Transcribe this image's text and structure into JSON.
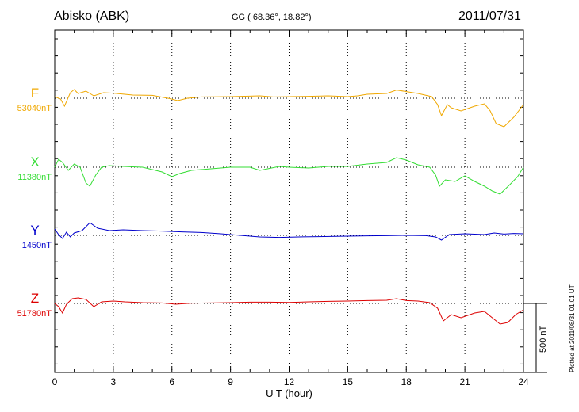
{
  "header": {
    "station": "Abisko (ABK)",
    "coords": "GG ( 68.36°,  18.82°)",
    "date": "2011/07/31"
  },
  "side_note": "Plotted at 2011/08/31 01:01  UT",
  "scale_bar_label": "500  nT",
  "chart_data": {
    "type": "line",
    "xlabel": "U T (hour)",
    "xlim": [
      0,
      24
    ],
    "x_ticks": [
      0,
      3,
      6,
      9,
      12,
      15,
      18,
      21,
      24
    ],
    "scale_bar_nT": 500,
    "grid": "dotted vertical lines every 3 hours, dotted baseline per component",
    "series": [
      {
        "name": "F",
        "baseline_label": "53040nT",
        "color": "#f0a800",
        "baseline": 53040,
        "points": [
          [
            0,
            53050
          ],
          [
            0.3,
            53035
          ],
          [
            0.5,
            52990
          ],
          [
            0.8,
            53075
          ],
          [
            1,
            53095
          ],
          [
            1.2,
            53070
          ],
          [
            1.6,
            53085
          ],
          [
            2.0,
            53055
          ],
          [
            2.5,
            53075
          ],
          [
            3,
            53072
          ],
          [
            4,
            53060
          ],
          [
            5,
            53058
          ],
          [
            5.8,
            53040
          ],
          [
            6.3,
            53025
          ],
          [
            6.8,
            53040
          ],
          [
            7.5,
            53048
          ],
          [
            9,
            53050
          ],
          [
            10.5,
            53055
          ],
          [
            11.2,
            53048
          ],
          [
            12,
            53050
          ],
          [
            13,
            53052
          ],
          [
            14,
            53055
          ],
          [
            15,
            53050
          ],
          [
            15.5,
            53055
          ],
          [
            16,
            53065
          ],
          [
            17,
            53070
          ],
          [
            17.5,
            53092
          ],
          [
            18,
            53082
          ],
          [
            18.6,
            53070
          ],
          [
            19.3,
            53050
          ],
          [
            19.6,
            53000
          ],
          [
            19.8,
            52930
          ],
          [
            20.1,
            53000
          ],
          [
            20.3,
            52980
          ],
          [
            20.8,
            52960
          ],
          [
            21.5,
            52990
          ],
          [
            22.0,
            53005
          ],
          [
            22.3,
            52960
          ],
          [
            22.6,
            52880
          ],
          [
            23.0,
            52860
          ],
          [
            23.5,
            52920
          ],
          [
            24,
            53000
          ]
        ]
      },
      {
        "name": "X",
        "baseline_label": "11380nT",
        "color": "#33dd33",
        "baseline": 11380,
        "points": [
          [
            0,
            11380
          ],
          [
            0.2,
            11430
          ],
          [
            0.4,
            11410
          ],
          [
            0.7,
            11360
          ],
          [
            1.0,
            11400
          ],
          [
            1.3,
            11380
          ],
          [
            1.6,
            11280
          ],
          [
            1.8,
            11260
          ],
          [
            2.1,
            11330
          ],
          [
            2.4,
            11380
          ],
          [
            2.8,
            11390
          ],
          [
            3.5,
            11385
          ],
          [
            4.5,
            11380
          ],
          [
            5.5,
            11350
          ],
          [
            6.0,
            11320
          ],
          [
            6.4,
            11340
          ],
          [
            7.0,
            11360
          ],
          [
            8,
            11370
          ],
          [
            9,
            11380
          ],
          [
            10,
            11380
          ],
          [
            10.5,
            11360
          ],
          [
            11.5,
            11385
          ],
          [
            12,
            11380
          ],
          [
            13,
            11375
          ],
          [
            14,
            11385
          ],
          [
            15,
            11385
          ],
          [
            16,
            11400
          ],
          [
            17,
            11410
          ],
          [
            17.5,
            11440
          ],
          [
            18,
            11425
          ],
          [
            18.6,
            11395
          ],
          [
            19.2,
            11380
          ],
          [
            19.5,
            11330
          ],
          [
            19.7,
            11260
          ],
          [
            20.0,
            11300
          ],
          [
            20.5,
            11290
          ],
          [
            21.0,
            11325
          ],
          [
            21.5,
            11290
          ],
          [
            22.0,
            11260
          ],
          [
            22.4,
            11230
          ],
          [
            22.8,
            11210
          ],
          [
            23.3,
            11270
          ],
          [
            23.7,
            11320
          ],
          [
            24,
            11380
          ]
        ]
      },
      {
        "name": "Y",
        "baseline_label": "1450nT",
        "color": "#0000cc",
        "baseline": 1450,
        "points": [
          [
            0,
            1490
          ],
          [
            0.2,
            1455
          ],
          [
            0.4,
            1430
          ],
          [
            0.6,
            1470
          ],
          [
            0.8,
            1440
          ],
          [
            1.0,
            1465
          ],
          [
            1.4,
            1480
          ],
          [
            1.8,
            1530
          ],
          [
            2.2,
            1495
          ],
          [
            2.8,
            1480
          ],
          [
            3.5,
            1485
          ],
          [
            4.5,
            1480
          ],
          [
            5.5,
            1477
          ],
          [
            6.5,
            1472
          ],
          [
            7.5,
            1468
          ],
          [
            8.5,
            1460
          ],
          [
            9.5,
            1450
          ],
          [
            10.5,
            1440
          ],
          [
            11.5,
            1437
          ],
          [
            12.5,
            1440
          ],
          [
            13.5,
            1442
          ],
          [
            15,
            1445
          ],
          [
            16,
            1447
          ],
          [
            17,
            1448
          ],
          [
            18,
            1450
          ],
          [
            19,
            1448
          ],
          [
            19.5,
            1440
          ],
          [
            19.8,
            1420
          ],
          [
            20.2,
            1455
          ],
          [
            21,
            1460
          ],
          [
            22,
            1455
          ],
          [
            22.5,
            1465
          ],
          [
            23,
            1458
          ],
          [
            23.5,
            1462
          ],
          [
            24,
            1460
          ]
        ]
      },
      {
        "name": "Z",
        "baseline_label": "51780nT",
        "color": "#dd0000",
        "baseline": 51780,
        "points": [
          [
            0,
            51780
          ],
          [
            0.2,
            51760
          ],
          [
            0.4,
            51720
          ],
          [
            0.6,
            51775
          ],
          [
            0.9,
            51810
          ],
          [
            1.2,
            51815
          ],
          [
            1.6,
            51805
          ],
          [
            2.0,
            51760
          ],
          [
            2.4,
            51790
          ],
          [
            3,
            51795
          ],
          [
            3.6,
            51790
          ],
          [
            4.5,
            51785
          ],
          [
            5.5,
            51783
          ],
          [
            6.2,
            51775
          ],
          [
            7,
            51782
          ],
          [
            8,
            51783
          ],
          [
            9,
            51785
          ],
          [
            10,
            51788
          ],
          [
            11,
            51788
          ],
          [
            12,
            51786
          ],
          [
            13,
            51790
          ],
          [
            14,
            51793
          ],
          [
            15,
            51795
          ],
          [
            16,
            51798
          ],
          [
            17,
            51800
          ],
          [
            17.5,
            51810
          ],
          [
            18,
            51798
          ],
          [
            18.6,
            51795
          ],
          [
            19.2,
            51785
          ],
          [
            19.6,
            51750
          ],
          [
            19.9,
            51670
          ],
          [
            20.3,
            51710
          ],
          [
            20.8,
            51690
          ],
          [
            21.5,
            51720
          ],
          [
            22.0,
            51730
          ],
          [
            22.4,
            51690
          ],
          [
            22.8,
            51650
          ],
          [
            23.2,
            51660
          ],
          [
            23.6,
            51710
          ],
          [
            24,
            51740
          ]
        ]
      }
    ]
  }
}
